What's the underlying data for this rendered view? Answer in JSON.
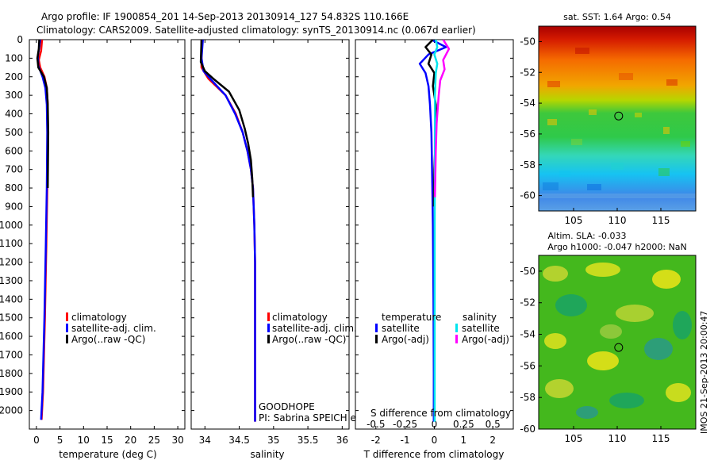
{
  "header": {
    "line1": "Argo profile: IF 1900854_201 14-Sep-2013 20130914_127 54.832S 110.166E",
    "line2": "Climatology: CARS2009. Satellite-adjusted climatology: synTS_20130914.nc (0.067d earlier)"
  },
  "colors": {
    "climatology": "#ff0000",
    "satellite": "#0000ff",
    "argo": "#000000",
    "cyan": "#00e5ee",
    "magenta": "#ff00ff"
  },
  "chart_data": [
    {
      "id": "temperature",
      "type": "line",
      "xlabel": "temperature (deg C)",
      "ylabel": "",
      "xlim": [
        -1.5,
        31.5
      ],
      "ylim": [
        0,
        2100
      ],
      "xticks": [
        "0",
        "5",
        "10",
        "15",
        "20",
        "25",
        "30"
      ],
      "yticks": [
        "0",
        "100",
        "200",
        "300",
        "400",
        "500",
        "600",
        "700",
        "800",
        "900",
        "1000",
        "1100",
        "1200",
        "1300",
        "1400",
        "1500",
        "1600",
        "1700",
        "1800",
        "1900",
        "2000"
      ],
      "legend": [
        "climatology",
        "satellite-adj. clim.",
        "Argo(..raw -QC)"
      ],
      "series": [
        {
          "name": "climatology",
          "color": "#ff0000",
          "points": [
            [
              1.2,
              0
            ],
            [
              1.0,
              60
            ],
            [
              0.5,
              110
            ],
            [
              0.8,
              150
            ],
            [
              1.7,
              200
            ],
            [
              2.2,
              260
            ],
            [
              2.4,
              350
            ],
            [
              2.4,
              500
            ],
            [
              2.3,
              800
            ],
            [
              2.1,
              1100
            ],
            [
              1.8,
              1500
            ],
            [
              1.4,
              1900
            ],
            [
              1.1,
              2050
            ]
          ]
        },
        {
          "name": "satellite",
          "color": "#0000ff",
          "points": [
            [
              0.8,
              0
            ],
            [
              0.6,
              40
            ],
            [
              0.3,
              90
            ],
            [
              0.4,
              140
            ],
            [
              1.3,
              200
            ],
            [
              1.9,
              260
            ],
            [
              2.2,
              350
            ],
            [
              2.3,
              500
            ],
            [
              2.2,
              800
            ],
            [
              2.0,
              1100
            ],
            [
              1.7,
              1500
            ],
            [
              1.3,
              1900
            ],
            [
              1.0,
              2050
            ]
          ]
        },
        {
          "name": "argo",
          "color": "#000000",
          "points": [
            [
              0.6,
              0
            ],
            [
              0.5,
              50
            ],
            [
              0.2,
              100
            ],
            [
              0.4,
              150
            ],
            [
              1.6,
              200
            ],
            [
              2.2,
              260
            ],
            [
              2.4,
              350
            ],
            [
              2.5,
              500
            ],
            [
              2.4,
              800
            ]
          ]
        }
      ]
    },
    {
      "id": "salinity",
      "type": "line",
      "xlabel": "salinity",
      "ylabel": "",
      "xlim": [
        33.8,
        36.1
      ],
      "ylim": [
        0,
        2100
      ],
      "xticks": [
        "34",
        "34.5",
        "35",
        "35.5",
        "36"
      ],
      "legend": [
        "climatology",
        "satellite-adj. clim.",
        "Argo(..raw -QC)"
      ],
      "annotation": [
        "GOODHOPE",
        "PI: Sabrina SPEICH et Michel ARHAN"
      ],
      "series": [
        {
          "name": "climatology",
          "color": "#ff0000",
          "points": [
            [
              33.95,
              0
            ],
            [
              33.95,
              150
            ],
            [
              34.05,
              210
            ],
            [
              34.3,
              300
            ],
            [
              34.45,
              400
            ],
            [
              34.55,
              500
            ],
            [
              34.62,
              600
            ],
            [
              34.67,
              700
            ],
            [
              34.7,
              800
            ],
            [
              34.72,
              1000
            ],
            [
              34.73,
              1200
            ],
            [
              34.73,
              1500
            ],
            [
              34.73,
              1800
            ],
            [
              34.73,
              2060
            ]
          ]
        },
        {
          "name": "satellite",
          "color": "#0000ff",
          "points": [
            [
              33.97,
              0
            ],
            [
              33.95,
              100
            ],
            [
              33.98,
              170
            ],
            [
              34.1,
              220
            ],
            [
              34.3,
              300
            ],
            [
              34.44,
              400
            ],
            [
              34.55,
              500
            ],
            [
              34.62,
              600
            ],
            [
              34.67,
              700
            ],
            [
              34.7,
              800
            ],
            [
              34.72,
              1000
            ],
            [
              34.73,
              1200
            ],
            [
              34.73,
              1500
            ],
            [
              34.73,
              1800
            ],
            [
              34.73,
              2060
            ]
          ]
        },
        {
          "name": "argo",
          "color": "#000000",
          "points": [
            [
              33.95,
              0
            ],
            [
              33.94,
              120
            ],
            [
              34.0,
              170
            ],
            [
              34.12,
              210
            ],
            [
              34.35,
              280
            ],
            [
              34.5,
              380
            ],
            [
              34.58,
              480
            ],
            [
              34.63,
              560
            ],
            [
              34.67,
              650
            ],
            [
              34.69,
              750
            ],
            [
              34.7,
              850
            ]
          ]
        }
      ]
    },
    {
      "id": "difference",
      "type": "line",
      "xlabel": "T difference from climatology",
      "ylabel": "",
      "xlim": [
        -2.7,
        2.7
      ],
      "ylim": [
        0,
        2100
      ],
      "xticks": [
        "-2",
        "-1",
        "0",
        "1",
        "2"
      ],
      "top_axis_label": "S difference from climatology",
      "top_xticks": [
        "-0.5",
        "-0.25",
        "0",
        "0.25",
        "0.5"
      ],
      "legend": [
        "temperature",
        "satellite",
        "Argo(-adj)",
        "salinity",
        "satellite",
        "Argo(-adj)"
      ],
      "series": [
        {
          "name": "T satellite",
          "color": "#0000ff",
          "points": [
            [
              -0.1,
              0
            ],
            [
              0.4,
              40
            ],
            [
              -0.2,
              80
            ],
            [
              -0.5,
              130
            ],
            [
              -0.3,
              180
            ],
            [
              -0.2,
              250
            ],
            [
              -0.15,
              350
            ],
            [
              -0.1,
              500
            ],
            [
              -0.08,
              700
            ],
            [
              -0.05,
              1000
            ],
            [
              -0.03,
              1400
            ],
            [
              -0.02,
              1800
            ],
            [
              -0.02,
              2060
            ]
          ]
        },
        {
          "name": "T argo",
          "color": "#000000",
          "points": [
            [
              -0.05,
              0
            ],
            [
              -0.3,
              40
            ],
            [
              -0.1,
              80
            ],
            [
              -0.2,
              130
            ],
            [
              0.0,
              180
            ],
            [
              -0.05,
              250
            ],
            [
              0.05,
              350
            ],
            [
              0.05,
              500
            ],
            [
              0.0,
              700
            ],
            [
              -0.02,
              900
            ]
          ]
        },
        {
          "name": "S satellite",
          "color": "#00e5ee",
          "points": [
            [
              0.05,
              0
            ],
            [
              0.1,
              40
            ],
            [
              0.0,
              80
            ],
            [
              0.1,
              130
            ],
            [
              0.05,
              180
            ],
            [
              0.02,
              300
            ],
            [
              0.02,
              600
            ],
            [
              0.01,
              1000
            ],
            [
              0.01,
              1500
            ],
            [
              0.01,
              2060
            ]
          ]
        },
        {
          "name": "S argo",
          "color": "#ff00ff",
          "points": [
            [
              0.3,
              0
            ],
            [
              0.5,
              50
            ],
            [
              0.3,
              110
            ],
            [
              0.35,
              160
            ],
            [
              0.2,
              220
            ],
            [
              0.15,
              300
            ],
            [
              0.08,
              450
            ],
            [
              0.05,
              600
            ],
            [
              0.02,
              850
            ]
          ]
        }
      ]
    },
    {
      "id": "sst_map",
      "type": "heatmap",
      "title": "sat. SST: 1.64 Argo: 0.54",
      "xlim": [
        101,
        119
      ],
      "ylim": [
        -61,
        -49
      ],
      "xticks": [
        "105",
        "110",
        "115"
      ],
      "yticks": [
        "-50",
        "-52",
        "-54",
        "-56",
        "-58",
        "-60"
      ],
      "marker": [
        110.166,
        -54.832
      ]
    },
    {
      "id": "sla_map",
      "type": "heatmap",
      "title": [
        "Altim. SLA: -0.033",
        "Argo h1000: -0.047 h2000: NaN"
      ],
      "xlim": [
        101,
        119
      ],
      "ylim": [
        -60,
        -49
      ],
      "xticks": [
        "105",
        "110",
        "115"
      ],
      "yticks": [
        "-50",
        "-52",
        "-54",
        "-56",
        "-58",
        "-60"
      ],
      "marker": [
        110.166,
        -54.832
      ],
      "side_label": "IMOS 21-Sep-2013 20:00:47"
    }
  ]
}
